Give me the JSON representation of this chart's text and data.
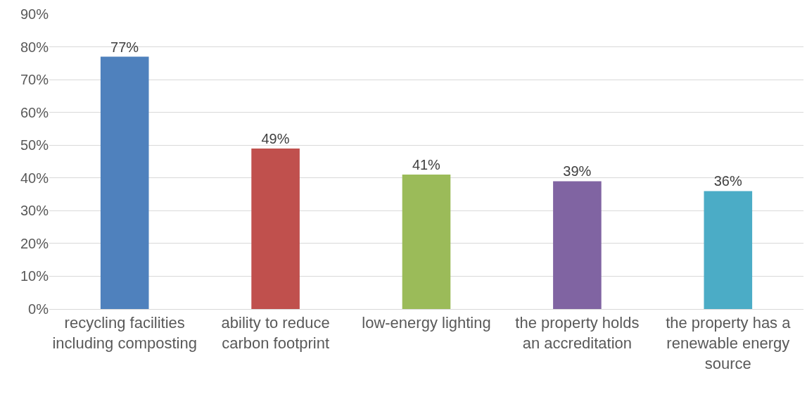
{
  "chart_data": {
    "type": "bar",
    "categories": [
      "recycling facilities including composting",
      "ability to reduce carbon footprint",
      "low-energy lighting",
      "the property holds an accreditation",
      "the property has a renewable energy source"
    ],
    "values": [
      77,
      49,
      41,
      39,
      36
    ],
    "colors": [
      "#4f81bd",
      "#c0504d",
      "#9bbb59",
      "#8064a2",
      "#4bacc6"
    ],
    "value_labels": [
      "77%",
      "49%",
      "41%",
      "39%",
      "36%"
    ],
    "ylim": [
      0,
      90
    ],
    "yticks": [
      {
        "value": 0,
        "label": "0%"
      },
      {
        "value": 10,
        "label": "10%"
      },
      {
        "value": 20,
        "label": "20%"
      },
      {
        "value": 30,
        "label": "30%"
      },
      {
        "value": 40,
        "label": "40%"
      },
      {
        "value": 50,
        "label": "50%"
      },
      {
        "value": 60,
        "label": "60%"
      },
      {
        "value": 70,
        "label": "70%"
      },
      {
        "value": 80,
        "label": "80%"
      },
      {
        "value": 90,
        "label": "90%"
      }
    ],
    "grid": "y"
  }
}
